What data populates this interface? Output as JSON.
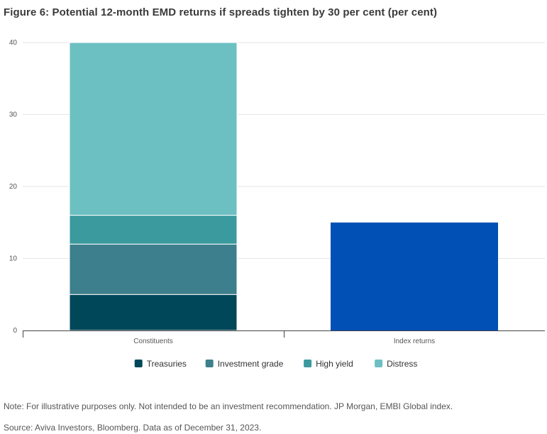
{
  "title": "Figure 6: Potential 12-month EMD returns if spreads tighten by 30 per cent (per cent)",
  "note": "Note: For illustrative purposes only. Not intended to be an investment recommendation. JP Morgan, EMBI Global index.",
  "source": "Source: Aviva Investors, Bloomberg. Data as of December 31, 2023.",
  "chart_data": {
    "type": "bar",
    "stacked": true,
    "categories": [
      "Constituents",
      "Index returns"
    ],
    "series": [
      {
        "name": "Treasuries",
        "color": "#00475a",
        "values": [
          5,
          0
        ]
      },
      {
        "name": "Investment grade",
        "color": "#3d7f8c",
        "values": [
          7,
          0
        ]
      },
      {
        "name": "High yield",
        "color": "#3a9a9e",
        "values": [
          4,
          0
        ]
      },
      {
        "name": "Distress",
        "color": "#6cc0c2",
        "values": [
          24,
          0
        ]
      }
    ],
    "single_bars": [
      {
        "category": "Index returns",
        "value": 15,
        "color": "#0050b5"
      }
    ],
    "yticks": [
      "0",
      "10",
      "20",
      "30",
      "40"
    ],
    "ylim": [
      0,
      40
    ],
    "grid": true,
    "legend_position": "bottom-center"
  }
}
